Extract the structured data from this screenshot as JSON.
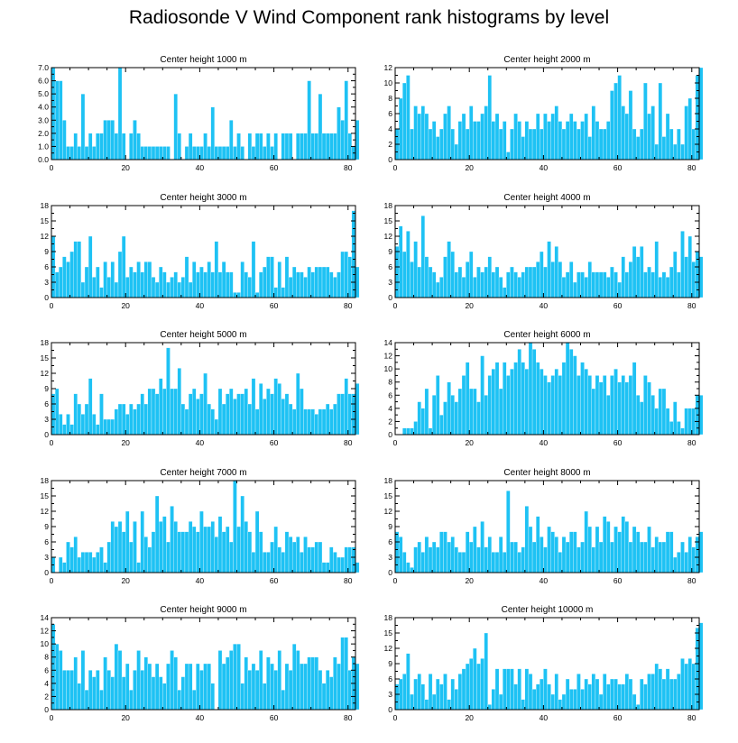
{
  "title": "Radiosonde V Wind Component rank histograms by level",
  "colors": {
    "bar": "#1ec2f4",
    "frame": "#000000"
  },
  "chart_data": [
    {
      "type": "bar",
      "title": "Center height 1000 m",
      "xlim": [
        0,
        82
      ],
      "xticks": [
        0,
        20,
        40,
        60,
        80
      ],
      "ylim": [
        0,
        7
      ],
      "yticks": [
        0,
        1,
        2,
        3,
        4,
        5,
        6,
        7
      ],
      "ytick_labels": [
        "0.0",
        "1.0",
        "2.0",
        "3.0",
        "4.0",
        "5.0",
        "6.0",
        "7.0"
      ],
      "values": [
        7,
        6,
        6,
        3,
        1,
        1,
        2,
        1,
        5,
        1,
        2,
        1,
        2,
        2,
        3,
        3,
        3,
        2,
        7,
        2,
        0,
        2,
        3,
        2,
        1,
        1,
        1,
        1,
        1,
        1,
        1,
        1,
        0,
        5,
        2,
        0,
        1,
        2,
        1,
        1,
        1,
        2,
        1,
        4,
        1,
        1,
        1,
        1,
        3,
        1,
        2,
        1,
        0,
        2,
        1,
        2,
        2,
        1,
        2,
        1,
        2,
        0,
        2,
        2,
        2,
        0,
        2,
        2,
        2,
        6,
        2,
        2,
        5,
        2,
        2,
        2,
        2,
        4,
        3,
        6,
        2,
        1,
        3
      ]
    },
    {
      "type": "bar",
      "title": "Center height 2000 m",
      "xlim": [
        0,
        82
      ],
      "xticks": [
        0,
        20,
        40,
        60,
        80
      ],
      "ylim": [
        0,
        12
      ],
      "yticks": [
        0,
        2,
        4,
        6,
        8,
        10,
        12
      ],
      "ytick_labels": [
        "0",
        "2",
        "4",
        "6",
        "8",
        "10",
        "12"
      ],
      "values": [
        4,
        8,
        10,
        11,
        4,
        7,
        6,
        7,
        6,
        4,
        5,
        3,
        4,
        6,
        7,
        4,
        2,
        5,
        6,
        4,
        7,
        5,
        5,
        6,
        7,
        11,
        5,
        6,
        4,
        5,
        1,
        4,
        6,
        5,
        3,
        5,
        4,
        4,
        6,
        4,
        6,
        5,
        6,
        7,
        5,
        4,
        5,
        6,
        5,
        4,
        5,
        6,
        3,
        7,
        5,
        4,
        4,
        5,
        9,
        10,
        11,
        7,
        6,
        9,
        4,
        3,
        4,
        10,
        6,
        7,
        2,
        10,
        3,
        6,
        4,
        2,
        4,
        2,
        7,
        8,
        4,
        11,
        12
      ]
    },
    {
      "type": "bar",
      "title": "Center height 3000 m",
      "xlim": [
        0,
        82
      ],
      "xticks": [
        0,
        20,
        40,
        60,
        80
      ],
      "ylim": [
        0,
        18
      ],
      "yticks": [
        0,
        3,
        6,
        9,
        12,
        15,
        18
      ],
      "ytick_labels": [
        "0",
        "3",
        "6",
        "9",
        "12",
        "15",
        "18"
      ],
      "values": [
        12,
        5,
        6,
        8,
        7,
        9,
        11,
        11,
        3,
        6,
        12,
        4,
        6,
        2,
        7,
        4,
        7,
        3,
        9,
        12,
        4,
        6,
        5,
        7,
        5,
        7,
        7,
        4,
        3,
        6,
        5,
        3,
        4,
        5,
        3,
        4,
        8,
        3,
        7,
        5,
        6,
        5,
        7,
        5,
        11,
        5,
        7,
        5,
        5,
        1,
        1,
        7,
        5,
        4,
        11,
        1,
        5,
        6,
        8,
        8,
        2,
        7,
        2,
        8,
        4,
        6,
        5,
        5,
        4,
        6,
        5,
        6,
        6,
        6,
        6,
        5,
        4,
        5,
        9,
        9,
        8,
        17,
        6
      ]
    },
    {
      "type": "bar",
      "title": "Center height 4000 m",
      "xlim": [
        0,
        82
      ],
      "xticks": [
        0,
        20,
        40,
        60,
        80
      ],
      "ylim": [
        0,
        18
      ],
      "yticks": [
        0,
        3,
        6,
        9,
        12,
        15,
        18
      ],
      "ytick_labels": [
        "0",
        "3",
        "6",
        "9",
        "12",
        "15",
        "18"
      ],
      "values": [
        10,
        14,
        9,
        13,
        7,
        11,
        6,
        16,
        8,
        6,
        5,
        3,
        4,
        8,
        11,
        9,
        5,
        6,
        4,
        7,
        9,
        4,
        6,
        5,
        6,
        8,
        5,
        6,
        4,
        2,
        5,
        6,
        5,
        4,
        5,
        6,
        6,
        6,
        7,
        9,
        6,
        11,
        7,
        10,
        7,
        4,
        5,
        7,
        3,
        5,
        5,
        4,
        7,
        5,
        5,
        5,
        5,
        4,
        6,
        5,
        3,
        8,
        5,
        7,
        10,
        8,
        10,
        5,
        6,
        5,
        11,
        4,
        5,
        4,
        6,
        9,
        5,
        13,
        8,
        12,
        7,
        9,
        8
      ]
    },
    {
      "type": "bar",
      "title": "Center height 5000 m",
      "xlim": [
        0,
        82
      ],
      "xticks": [
        0,
        20,
        40,
        60,
        80
      ],
      "ylim": [
        0,
        18
      ],
      "yticks": [
        0,
        3,
        6,
        9,
        12,
        15,
        18
      ],
      "ytick_labels": [
        "0",
        "3",
        "6",
        "9",
        "12",
        "15",
        "18"
      ],
      "values": [
        8,
        9,
        4,
        2,
        4,
        2,
        8,
        6,
        4,
        6,
        11,
        4,
        2,
        8,
        3,
        3,
        3,
        5,
        6,
        6,
        4,
        6,
        5,
        6,
        8,
        6,
        9,
        9,
        8,
        11,
        9,
        17,
        9,
        9,
        13,
        6,
        5,
        8,
        9,
        7,
        8,
        12,
        6,
        5,
        3,
        9,
        6,
        8,
        9,
        7,
        8,
        8,
        9,
        6,
        11,
        5,
        10,
        7,
        9,
        8,
        11,
        10,
        7,
        8,
        6,
        5,
        12,
        9,
        5,
        5,
        5,
        4,
        5,
        5,
        6,
        5,
        6,
        8,
        8,
        11,
        8,
        8,
        10
      ]
    },
    {
      "type": "bar",
      "title": "Center height 6000 m",
      "xlim": [
        0,
        82
      ],
      "xticks": [
        0,
        20,
        40,
        60,
        80
      ],
      "ylim": [
        0,
        14
      ],
      "yticks": [
        0,
        2,
        4,
        6,
        8,
        10,
        12,
        14
      ],
      "ytick_labels": [
        "0",
        "2",
        "4",
        "6",
        "8",
        "10",
        "12",
        "14"
      ],
      "values": [
        0,
        0,
        1,
        1,
        1,
        2,
        5,
        4,
        7,
        1,
        6,
        9,
        3,
        5,
        8,
        6,
        5,
        7,
        9,
        11,
        7,
        7,
        5,
        12,
        6,
        9,
        10,
        11,
        7,
        11,
        9,
        10,
        11,
        13,
        11,
        10,
        14,
        13,
        11,
        10,
        9,
        8,
        9,
        10,
        9,
        11,
        14,
        13,
        12,
        9,
        11,
        10,
        9,
        7,
        9,
        8,
        9,
        6,
        9,
        10,
        8,
        9,
        8,
        9,
        11,
        6,
        5,
        9,
        8,
        6,
        4,
        7,
        7,
        4,
        2,
        5,
        2,
        1,
        4,
        4,
        4,
        6,
        6
      ]
    },
    {
      "type": "bar",
      "title": "Center height 7000 m",
      "xlim": [
        0,
        82
      ],
      "xticks": [
        0,
        20,
        40,
        60,
        80
      ],
      "ylim": [
        0,
        18
      ],
      "yticks": [
        0,
        3,
        6,
        9,
        12,
        15,
        18
      ],
      "ytick_labels": [
        "0",
        "3",
        "6",
        "9",
        "12",
        "15",
        "18"
      ],
      "values": [
        3,
        0,
        3,
        2,
        6,
        5,
        7,
        3,
        4,
        4,
        4,
        3,
        4,
        5,
        2,
        6,
        10,
        9,
        10,
        8,
        12,
        6,
        10,
        2,
        12,
        7,
        5,
        8,
        15,
        10,
        11,
        6,
        13,
        10,
        8,
        8,
        8,
        10,
        9,
        8,
        12,
        9,
        9,
        10,
        7,
        11,
        8,
        9,
        6,
        18,
        9,
        15,
        10,
        8,
        4,
        12,
        8,
        4,
        4,
        6,
        9,
        5,
        4,
        8,
        7,
        6,
        7,
        4,
        7,
        5,
        5,
        6,
        6,
        2,
        2,
        5,
        4,
        3,
        3,
        5,
        5,
        5,
        2
      ]
    },
    {
      "type": "bar",
      "title": "Center height 8000 m",
      "xlim": [
        0,
        82
      ],
      "xticks": [
        0,
        20,
        40,
        60,
        80
      ],
      "ylim": [
        0,
        18
      ],
      "yticks": [
        0,
        3,
        6,
        9,
        12,
        15,
        18
      ],
      "ytick_labels": [
        "0",
        "3",
        "6",
        "9",
        "12",
        "15",
        "18"
      ],
      "values": [
        8,
        7,
        4,
        2,
        1,
        5,
        6,
        4,
        7,
        5,
        6,
        5,
        8,
        8,
        6,
        7,
        5,
        4,
        4,
        8,
        6,
        9,
        5,
        10,
        5,
        7,
        4,
        4,
        7,
        4,
        16,
        6,
        6,
        4,
        5,
        13,
        9,
        6,
        11,
        7,
        5,
        9,
        8,
        7,
        4,
        7,
        6,
        8,
        8,
        5,
        6,
        12,
        9,
        5,
        9,
        6,
        11,
        10,
        6,
        9,
        8,
        11,
        10,
        6,
        9,
        8,
        6,
        6,
        9,
        5,
        7,
        6,
        6,
        8,
        8,
        3,
        4,
        6,
        4,
        7,
        5,
        7,
        8
      ]
    },
    {
      "type": "bar",
      "title": "Center height 9000 m",
      "xlim": [
        0,
        82
      ],
      "xticks": [
        0,
        20,
        40,
        60,
        80
      ],
      "ylim": [
        0,
        14
      ],
      "yticks": [
        0,
        2,
        4,
        6,
        8,
        10,
        12,
        14
      ],
      "ytick_labels": [
        "0",
        "2",
        "4",
        "6",
        "8",
        "10",
        "12",
        "14"
      ],
      "values": [
        13,
        10,
        9,
        6,
        6,
        6,
        8,
        4,
        9,
        3,
        6,
        5,
        6,
        3,
        8,
        6,
        5,
        10,
        9,
        5,
        7,
        3,
        6,
        9,
        6,
        8,
        7,
        5,
        7,
        5,
        4,
        7,
        9,
        8,
        3,
        5,
        7,
        7,
        3,
        7,
        6,
        7,
        7,
        4,
        0,
        9,
        7,
        8,
        9,
        10,
        10,
        4,
        8,
        6,
        7,
        6,
        9,
        4,
        8,
        7,
        6,
        9,
        3,
        7,
        6,
        10,
        9,
        7,
        7,
        8,
        8,
        8,
        6,
        4,
        6,
        5,
        8,
        7,
        11,
        11,
        6,
        8,
        7
      ]
    },
    {
      "type": "bar",
      "title": "Center height 10000 m",
      "xlim": [
        0,
        82
      ],
      "xticks": [
        0,
        20,
        40,
        60,
        80
      ],
      "ylim": [
        0,
        18
      ],
      "yticks": [
        0,
        3,
        6,
        9,
        12,
        15,
        18
      ],
      "ytick_labels": [
        "0",
        "3",
        "6",
        "9",
        "12",
        "15",
        "18"
      ],
      "values": [
        5,
        6,
        7,
        11,
        3,
        6,
        7,
        5,
        2,
        7,
        3,
        6,
        5,
        7,
        2,
        6,
        4,
        7,
        8,
        9,
        10,
        12,
        9,
        10,
        15,
        1,
        4,
        8,
        3,
        8,
        8,
        8,
        5,
        8,
        2,
        8,
        7,
        4,
        5,
        6,
        8,
        5,
        3,
        7,
        2,
        3,
        6,
        4,
        4,
        7,
        4,
        6,
        5,
        7,
        6,
        3,
        7,
        5,
        6,
        6,
        5,
        5,
        7,
        6,
        3,
        1,
        6,
        5,
        7,
        7,
        9,
        8,
        6,
        8,
        6,
        6,
        7,
        10,
        9,
        10,
        9,
        16,
        17
      ]
    }
  ]
}
